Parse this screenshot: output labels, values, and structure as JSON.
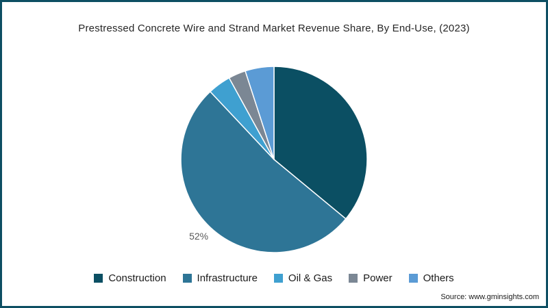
{
  "source": "Source: www.gminsights.com",
  "colors": {
    "frame_border": "#0d4f63",
    "slice_label": "#595959",
    "title_text": "#262626"
  },
  "chart_data": {
    "type": "pie",
    "title": "Prestressed Concrete Wire and Strand Market Revenue Share, By End-Use, (2023)",
    "unit": "%",
    "start_angle": "top",
    "direction": "clockwise",
    "legend_position": "bottom",
    "slices": [
      {
        "name": "Construction",
        "value": 36,
        "color": "#0b4f63",
        "label": ""
      },
      {
        "name": "Infrastructure",
        "value": 52,
        "color": "#2e7596",
        "label": "52%"
      },
      {
        "name": "Oil & Gas",
        "value": 4,
        "color": "#3fa0d0",
        "label": ""
      },
      {
        "name": "Power",
        "value": 3,
        "color": "#7b8794",
        "label": ""
      },
      {
        "name": "Others",
        "value": 5,
        "color": "#5b9bd5",
        "label": ""
      }
    ]
  }
}
